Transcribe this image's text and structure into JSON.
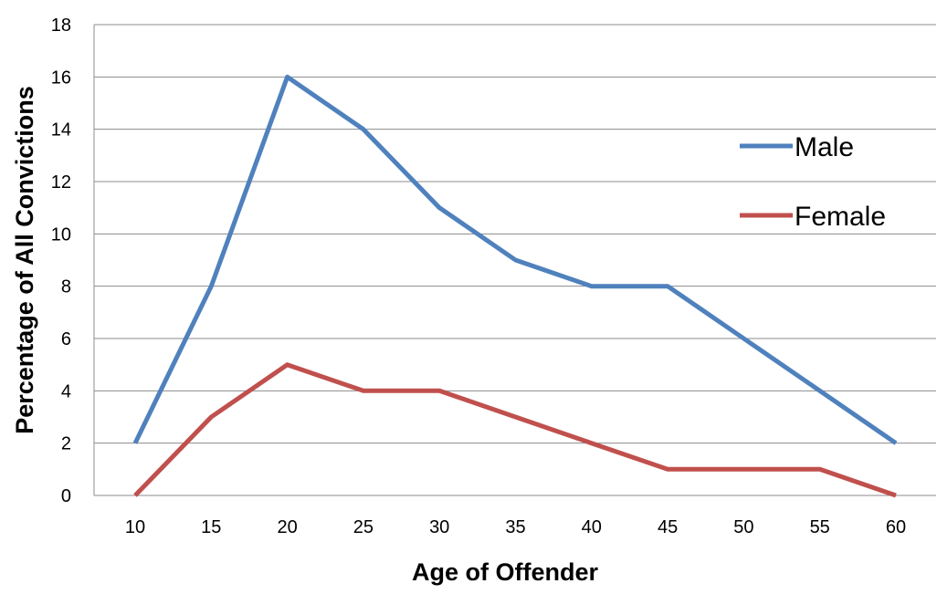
{
  "chart_data": {
    "type": "line",
    "title": "",
    "xlabel": "Age of Offender",
    "ylabel": "Percentage of All Convictions",
    "x": [
      10,
      15,
      20,
      25,
      30,
      35,
      40,
      45,
      50,
      55,
      60
    ],
    "x_tick_labels": [
      "10",
      "15",
      "20",
      "25",
      "30",
      "35",
      "40",
      "45",
      "50",
      "55",
      "60"
    ],
    "y_ticks": [
      0,
      2,
      4,
      6,
      8,
      10,
      12,
      14,
      16,
      18
    ],
    "y_tick_labels": [
      "0",
      "2",
      "4",
      "6",
      "8",
      "10",
      "12",
      "14",
      "16",
      "18"
    ],
    "ylim": [
      0,
      18
    ],
    "grid": "horizontal",
    "legend_position": "right",
    "series": [
      {
        "name": "Male",
        "color": "#4f81bd",
        "values": [
          2,
          8,
          16,
          14,
          11,
          9,
          8,
          8,
          6,
          4,
          2
        ]
      },
      {
        "name": "Female",
        "color": "#c0504d",
        "values": [
          0,
          3,
          5,
          4,
          4,
          3,
          2,
          1,
          1,
          1,
          0
        ]
      }
    ]
  }
}
